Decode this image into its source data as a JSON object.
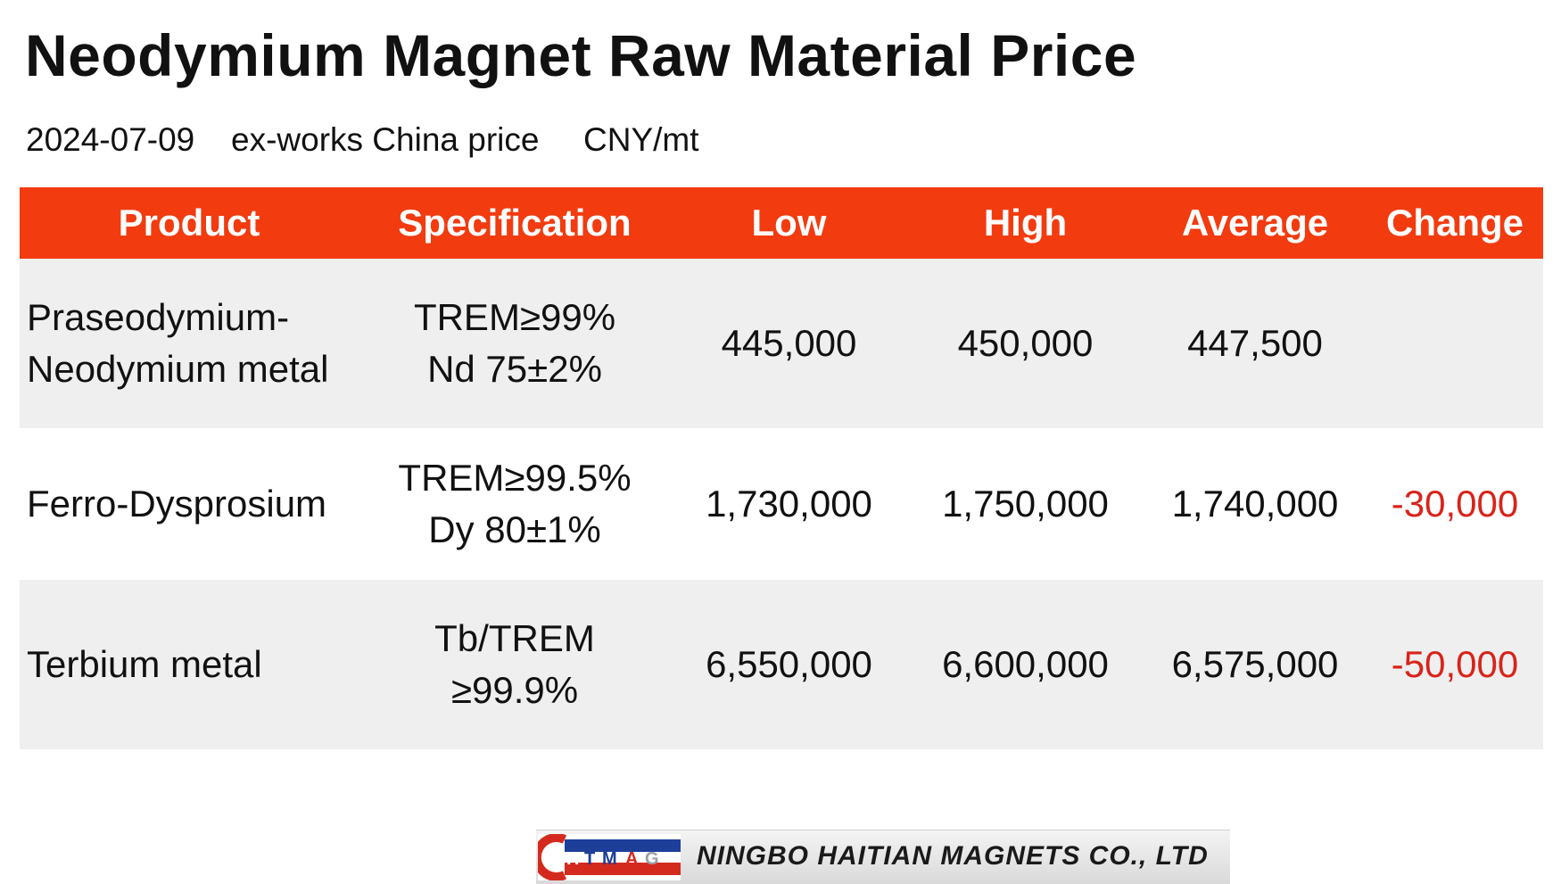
{
  "title": "Neodymium Magnet Raw Material Price",
  "subtitle": {
    "date": "2024-07-09",
    "basis": "ex-works China price",
    "unit": "CNY/mt"
  },
  "table": {
    "headers": [
      "Product",
      "Specification",
      "Low",
      "High",
      "Average",
      "Change"
    ],
    "rows": [
      {
        "product": [
          "Praseodymium-",
          "Neodymium metal"
        ],
        "spec": [
          "TREM≥99%",
          "Nd 75±2%"
        ],
        "low": "445,000",
        "high": "450,000",
        "average": "447,500",
        "change": ""
      },
      {
        "product": [
          "Ferro-Dysprosium"
        ],
        "spec": [
          "TREM≥99.5%",
          "Dy 80±1%"
        ],
        "low": "1,730,000",
        "high": "1,750,000",
        "average": "1,740,000",
        "change": "-30,000"
      },
      {
        "product": [
          "Terbium metal"
        ],
        "spec": [
          "Tb/TREM",
          "≥99.9%"
        ],
        "low": "6,550,000",
        "high": "6,600,000",
        "average": "6,575,000",
        "change": "-50,000"
      }
    ]
  },
  "colors": {
    "header_bg": "#f23b0f",
    "change_negative": "#d9231a",
    "row_shade": "#efefef"
  },
  "footer": {
    "logo_text": "HTMAG",
    "company": "NINGBO HAITIAN MAGNETS CO., LTD"
  }
}
